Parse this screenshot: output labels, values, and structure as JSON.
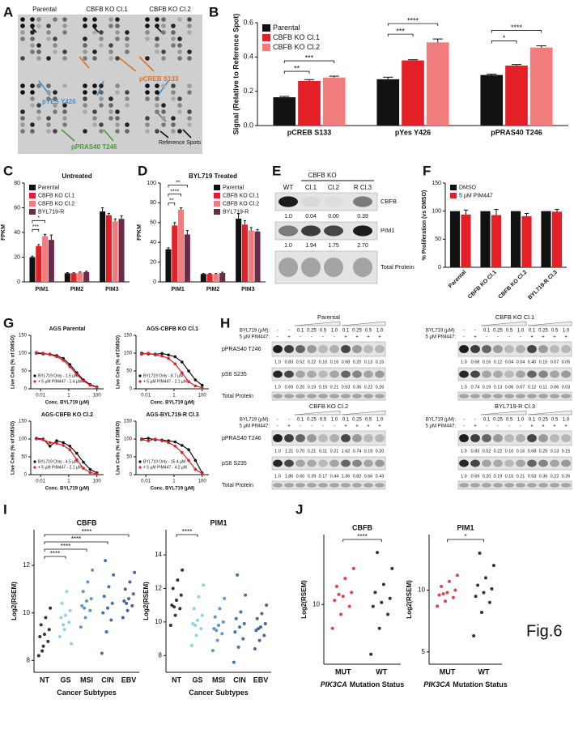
{
  "figure_label": "Fig.6",
  "panel_letters": [
    "A",
    "B",
    "C",
    "D",
    "E",
    "F",
    "G",
    "H",
    "I",
    "J"
  ],
  "panel_a": {
    "columns": [
      "Parental",
      "CBFB KO Cl.1",
      "CBFB KO Cl.2"
    ],
    "annotations": [
      "pCREB S133",
      "pYES Y426",
      "pPRAS40 T246",
      "Reference Spots"
    ]
  },
  "panel_e": {
    "header": "CBFB KO",
    "lanes": [
      "WT",
      "Cl.1",
      "Cl.2",
      "R Cl.3"
    ],
    "blots": [
      {
        "label": "CBFB",
        "quant": [
          "1.0",
          "0.04",
          "0.00",
          "0.39"
        ]
      },
      {
        "label": "PIM1",
        "quant": [
          "1.0",
          "1.94",
          "1.75",
          "2.70"
        ]
      },
      {
        "label": "Total Protein"
      }
    ]
  },
  "panel_h": {
    "byl_label": "BYL719 (µM):",
    "pim_label": "5 µM PIM447:",
    "byl": [
      "-",
      "-",
      "0.1",
      "0.25",
      "0.5",
      "1.0",
      "0.1",
      "0.25",
      "0.5",
      "1.0"
    ],
    "pim": [
      "-",
      "+",
      "-",
      "-",
      "-",
      "-",
      "+",
      "+",
      "+",
      "+"
    ],
    "rows": [
      "pPRAS40 T246",
      "pS6 S235",
      "Total Protein"
    ],
    "blocks": [
      {
        "title": "Parental",
        "quant": [
          [
            "1.0",
            "0.83",
            "0.52",
            "0.22",
            "0.10",
            "0.16",
            "0.68",
            "0.20",
            "0.13",
            "0.15"
          ],
          [
            "1.0",
            "0.69",
            "0.20",
            "0.19",
            "0.15",
            "0.21",
            "0.53",
            "0.36",
            "0.22",
            "0.26"
          ]
        ]
      },
      {
        "title": "CBFB KO Cl.1",
        "quant": [
          [
            "1.0",
            "0.58",
            "0.16",
            "0.12",
            "0.04",
            "0.04",
            "0.40",
            "0.15",
            "0.07",
            "0.05"
          ],
          [
            "1.0",
            "0.74",
            "0.19",
            "0.13",
            "0.06",
            "0.07",
            "0.12",
            "0.11",
            "0.06",
            "0.03"
          ]
        ]
      },
      {
        "title": "CBFB KO Cl.2",
        "quant": [
          [
            "1.0",
            "1.21",
            "0.70",
            "0.21",
            "0.11",
            "0.21",
            "1.62",
            "0.74",
            "0.19",
            "0.20"
          ],
          [
            "1.0",
            "1.86",
            "0.60",
            "0.39",
            "0.17",
            "0.44",
            "1.36",
            "0.82",
            "0.66",
            "0.43"
          ]
        ]
      },
      {
        "title": "BYL719-R Cl.3",
        "quant": [
          [
            "1.0",
            "0.83",
            "0.52",
            "0.22",
            "0.10",
            "0.16",
            "0.68",
            "0.25",
            "0.13",
            "0.15"
          ],
          [
            "1.0",
            "0.69",
            "0.20",
            "0.19",
            "0.15",
            "0.21",
            "0.53",
            "0.36",
            "0.22",
            "0.26"
          ]
        ]
      }
    ]
  },
  "chart_data": [
    {
      "type": "bar",
      "ylabel": "Signal (Relative to Reference Spot)",
      "categories": [
        "pCREB S133",
        "pYes Y426",
        "pPRAS40 T246"
      ],
      "series": [
        {
          "name": "Parental",
          "color": "#111111",
          "values": [
            0.165,
            0.27,
            0.295
          ],
          "errors": [
            0.005,
            0.012,
            0.005
          ]
        },
        {
          "name": "CBFB KO Cl.1",
          "color": "#e32028",
          "values": [
            0.26,
            0.38,
            0.35
          ],
          "errors": [
            0.008,
            0.004,
            0.006
          ]
        },
        {
          "name": "CBFB KO Cl.2",
          "color": "#f07c7c",
          "values": [
            0.28,
            0.485,
            0.455
          ],
          "errors": [
            0.008,
            0.02,
            0.01
          ]
        }
      ],
      "ylim": [
        0,
        0.6
      ],
      "yticks": [
        {
          "value": 0,
          "label": "0.0"
        },
        0.2,
        0.4,
        0.6
      ],
      "legend": "upper left",
      "significance": [
        [
          "**",
          "***"
        ],
        [
          "***",
          "****"
        ],
        [
          "*",
          "****"
        ]
      ]
    },
    {
      "type": "bar",
      "title": "Untreated",
      "ylabel": "FPKM",
      "categories": [
        "PIM1",
        "PIM2",
        "PIM3"
      ],
      "series": [
        {
          "name": "Parental",
          "color": "#111111",
          "values": [
            20,
            7,
            57
          ],
          "errors": [
            0.8,
            0.5,
            3
          ]
        },
        {
          "name": "CBFB KO Cl.1",
          "color": "#e32028",
          "values": [
            29,
            7,
            54
          ],
          "errors": [
            1.2,
            0.4,
            1.5
          ]
        },
        {
          "name": "CBFB KO Cl.2",
          "color": "#f07c7c",
          "values": [
            37,
            7.5,
            49
          ],
          "errors": [
            1.5,
            0.5,
            2
          ]
        },
        {
          "name": "BYL719-R",
          "color": "#6b2a4a",
          "values": [
            34,
            8,
            51
          ],
          "errors": [
            4,
            0.6,
            2.5
          ]
        }
      ],
      "ylim": [
        0,
        80
      ],
      "yticks": [
        0,
        20,
        40,
        60,
        80
      ],
      "legend": "upper left",
      "significance": [
        [
          "***",
          "*"
        ],
        [],
        []
      ]
    },
    {
      "type": "bar",
      "title": "BYL719 Treated",
      "ylabel": "FPKM",
      "categories": [
        "PIM1",
        "PIM2",
        "PIM3"
      ],
      "series": [
        {
          "name": "Parental",
          "color": "#111111",
          "values": [
            33,
            8,
            64
          ],
          "errors": [
            1.5,
            0.5,
            5
          ]
        },
        {
          "name": "CBFB KO Cl.1",
          "color": "#e32028",
          "values": [
            57,
            8,
            58
          ],
          "errors": [
            3,
            0.5,
            4
          ]
        },
        {
          "name": "CBFB KO Cl.2",
          "color": "#f07c7c",
          "values": [
            73,
            8,
            52
          ],
          "errors": [
            2,
            0.5,
            3
          ]
        },
        {
          "name": "BYL719-R",
          "color": "#6b2a4a",
          "values": [
            48,
            9,
            51
          ],
          "errors": [
            4,
            0.8,
            2
          ]
        }
      ],
      "ylim": [
        0,
        100
      ],
      "yticks": [
        0,
        20,
        40,
        60,
        80,
        100
      ],
      "legend": "upper right",
      "significance": [
        [
          "**",
          "****",
          "**"
        ],
        [],
        []
      ]
    },
    {
      "type": "bar",
      "ylabel": "% Proliferation (vs DMSO)",
      "categories": [
        "Parental",
        "CBFB KO Cl.1",
        "CBFB KO Cl.2",
        "BYL719-R Cl.3"
      ],
      "series": [
        {
          "name": "DMSO",
          "color": "#111111",
          "values": [
            100,
            100,
            100,
            100
          ]
        },
        {
          "name": "5 µM PIM447",
          "color": "#e32028",
          "values": [
            94,
            93,
            91,
            99
          ],
          "errors": [
            8,
            10,
            5,
            4
          ]
        }
      ],
      "ylim": [
        0,
        150
      ],
      "yticks": [
        0,
        50,
        100,
        150
      ],
      "legend": "upper left",
      "rotate_labels": true
    },
    {
      "type": "line",
      "title": "AGS Parental",
      "xlabel": "Conc. BYL719 (µM)",
      "ylabel": "Live Cells (% of DMSO)",
      "log_x": true,
      "x": [
        0.005,
        0.015,
        0.046,
        0.14,
        0.41,
        1.2,
        3.7,
        11,
        33,
        100
      ],
      "xlim": [
        0.002,
        300
      ],
      "xticks": [
        0.01,
        1,
        100
      ],
      "ylim": [
        0,
        150
      ],
      "yticks": [
        0,
        50,
        100,
        150
      ],
      "series": [
        {
          "name": "BYL719 Only - 1.5 µM",
          "color": "#111111",
          "values": [
            100,
            98,
            97,
            93,
            85,
            68,
            45,
            25,
            12,
            5
          ]
        },
        {
          "name": "+ 5 µM PIM447 - 1.4 µM",
          "color": "#e32028",
          "values": [
            102,
            100,
            96,
            90,
            80,
            62,
            40,
            22,
            10,
            4
          ]
        }
      ]
    },
    {
      "type": "line",
      "title": "AGS-CBFB KO Cl.1",
      "xlabel": "Conc. BYL719 (µM)",
      "ylabel": "Live Cells (% of DMSO)",
      "log_x": true,
      "x": [
        0.005,
        0.015,
        0.046,
        0.14,
        0.41,
        1.2,
        3.7,
        11,
        33,
        100
      ],
      "xlim": [
        0.002,
        300
      ],
      "xticks": [
        0.01,
        1,
        100
      ],
      "ylim": [
        0,
        150
      ],
      "yticks": [
        0,
        50,
        100,
        150
      ],
      "series": [
        {
          "name": "BYL719 Only - 8.7 µM",
          "color": "#111111",
          "values": [
            100,
            98,
            97,
            99,
            95,
            90,
            75,
            50,
            25,
            10
          ]
        },
        {
          "name": "+ 5 µM PIM447 - 2.1 µM",
          "color": "#e32028",
          "values": [
            97,
            100,
            95,
            92,
            85,
            70,
            45,
            20,
            8,
            3
          ]
        }
      ]
    },
    {
      "type": "line",
      "title": "AGS-CBFB KO Cl.2",
      "xlabel": "Conc. BYL719 (µM)",
      "ylabel": "Live Cells (% of DMSO)",
      "log_x": true,
      "x": [
        0.005,
        0.015,
        0.046,
        0.14,
        0.41,
        1.2,
        3.7,
        11,
        33,
        100
      ],
      "xlim": [
        0.002,
        300
      ],
      "xticks": [
        0.01,
        1,
        100
      ],
      "ylim": [
        0,
        150
      ],
      "yticks": [
        0,
        50,
        100,
        150
      ],
      "series": [
        {
          "name": "BYL719 Only - 4.5 µM",
          "color": "#111111",
          "values": [
            102,
            100,
            80,
            95,
            90,
            80,
            60,
            35,
            15,
            5
          ]
        },
        {
          "name": "+ 5 µM PIM447 - 2.1 µM",
          "color": "#e32028",
          "values": [
            100,
            98,
            90,
            88,
            82,
            70,
            42,
            18,
            6,
            2
          ]
        }
      ]
    },
    {
      "type": "line",
      "title": "AGS-BYL719-R Cl.3",
      "xlabel": "Conc. BYL719 (µM)",
      "ylabel": "Live Cells (% of DMSO)",
      "log_x": true,
      "x": [
        0.005,
        0.015,
        0.046,
        0.14,
        0.41,
        1.2,
        3.7,
        11,
        33,
        100
      ],
      "xlim": [
        0.002,
        300
      ],
      "xticks": [
        0.01,
        1,
        100
      ],
      "ylim": [
        0,
        150
      ],
      "yticks": [
        0,
        50,
        100,
        150
      ],
      "series": [
        {
          "name": "BYL719 Only - 15.4 µM",
          "color": "#111111",
          "values": [
            100,
            102,
            98,
            97,
            95,
            92,
            82,
            70,
            40,
            5
          ]
        },
        {
          "name": "+ 5 µM PIM447 - 4.2 µM",
          "color": "#e32028",
          "values": [
            98,
            95,
            100,
            95,
            90,
            80,
            62,
            40,
            15,
            3
          ]
        }
      ]
    },
    {
      "type": "strip",
      "title": "CBFB",
      "xlabel": "Cancer Subtypes",
      "ylabel": "Log2(RSEM)",
      "categories": [
        "NT",
        "GS",
        "MSI",
        "CIN",
        "EBV"
      ],
      "colors": [
        "#111111",
        "#7cc8ec",
        "#3d86c6",
        "#1f5a9e",
        "#2b4a8a"
      ],
      "ylim": [
        7.5,
        13.5
      ],
      "yticks": [
        8,
        10,
        12
      ],
      "values": [
        [
          8.2,
          8.6,
          8.8,
          9.0,
          9.1,
          9.3,
          9.5,
          9.8,
          10.2,
          8.4
        ],
        [
          9.0,
          9.3,
          9.6,
          9.8,
          9.9,
          10.1,
          10.4,
          10.9,
          8.7,
          9.5
        ],
        [
          9.4,
          9.8,
          10.1,
          10.3,
          10.5,
          10.6,
          10.9,
          11.3,
          11.8,
          10.2
        ],
        [
          8.3,
          9.2,
          9.7,
          10.0,
          10.2,
          10.4,
          10.7,
          11.1,
          11.6,
          12.2
        ],
        [
          9.8,
          10.1,
          10.3,
          10.5,
          10.6,
          10.8,
          11.0,
          11.3,
          11.7,
          10.4
        ]
      ],
      "significance": [
        "****",
        "****",
        "****",
        "****"
      ]
    },
    {
      "type": "strip",
      "title": "PIM1",
      "xlabel": "Cancer Subtypes",
      "ylabel": "Log2(RSEM)",
      "categories": [
        "NT",
        "GS",
        "MSI",
        "CIN",
        "EBV"
      ],
      "colors": [
        "#111111",
        "#7cc8ec",
        "#3d86c6",
        "#1f5a9e",
        "#2b4a8a"
      ],
      "ylim": [
        7,
        15.5
      ],
      "yticks": [
        8,
        10,
        12,
        14
      ],
      "values": [
        [
          9.8,
          10.4,
          10.8,
          11.0,
          11.3,
          11.6,
          12.0,
          12.5,
          13.1,
          10.9
        ],
        [
          8.6,
          9.2,
          9.6,
          9.9,
          10.1,
          10.4,
          10.8,
          11.5,
          12.2,
          9.8
        ],
        [
          8.3,
          8.9,
          9.3,
          9.6,
          9.8,
          10.0,
          10.3,
          10.8,
          11.4,
          9.5
        ],
        [
          7.6,
          8.5,
          9.0,
          9.4,
          9.7,
          9.9,
          10.2,
          10.6,
          11.6,
          12.8
        ],
        [
          8.4,
          8.9,
          9.2,
          9.5,
          9.7,
          9.9,
          10.2,
          10.5,
          11.0,
          9.6
        ]
      ],
      "significance": [
        "****"
      ]
    },
    {
      "type": "strip",
      "title": "CBFB",
      "xlabel_gene": "PIK3CA",
      "xlabel": "Mutation Status",
      "ylabel": "Log2(RSEM)",
      "categories": [
        "MUT",
        "WT"
      ],
      "colors": [
        "#e32028",
        "#111111"
      ],
      "ylim": [
        7,
        13.5
      ],
      "yticks": [
        10
      ],
      "values": [
        [
          8.8,
          9.5,
          9.9,
          10.2,
          10.4,
          10.6,
          10.9,
          11.3,
          11.8,
          10.5
        ],
        [
          7.5,
          8.8,
          9.5,
          9.9,
          10.1,
          10.3,
          10.6,
          11.0,
          11.8,
          12.6
        ]
      ],
      "significance": [
        "****"
      ]
    },
    {
      "type": "strip",
      "title": "PIM1",
      "xlabel_gene": "PIK3CA",
      "xlabel": "Mutation Status",
      "ylabel": "Log2(RSEM)",
      "categories": [
        "MUT",
        "WT"
      ],
      "colors": [
        "#e32028",
        "#111111"
      ],
      "ylim": [
        4,
        14.5
      ],
      "yticks": [
        5,
        10
      ],
      "values": [
        [
          8.7,
          9.1,
          9.4,
          9.6,
          9.8,
          10.0,
          10.3,
          10.7,
          11.2,
          9.7
        ],
        [
          6.3,
          8.2,
          9.0,
          9.5,
          9.8,
          10.1,
          10.4,
          11.0,
          12.0,
          13.0
        ]
      ],
      "significance": [
        "*"
      ]
    }
  ]
}
